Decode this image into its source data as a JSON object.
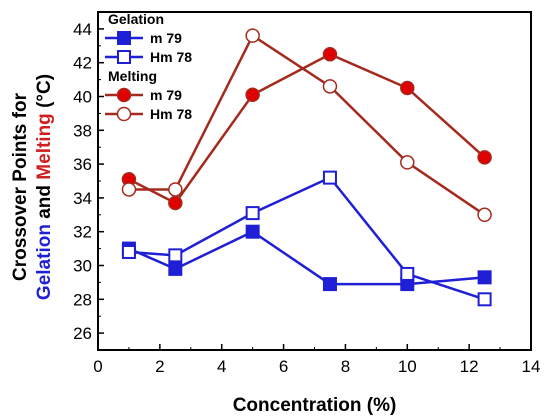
{
  "chart_data": {
    "type": "line",
    "xlabel": "Concentration (%)",
    "ylabel_parts": [
      {
        "text": "Crossover Points for",
        "color": "#000000",
        "line": 1
      },
      {
        "text": "Gelation",
        "color": "#1f1fd6",
        "line": 2
      },
      {
        "text": " and ",
        "color": "#000000",
        "line": 2
      },
      {
        "text": "Melting",
        "color": "#d01f1f",
        "line": 2
      },
      {
        "text": "  (°C)",
        "color": "#000000",
        "line": 2
      }
    ],
    "xlim": [
      0,
      14
    ],
    "ylim": [
      25,
      45
    ],
    "xticks": [
      0,
      2,
      4,
      6,
      8,
      10,
      12,
      14
    ],
    "yticks": [
      26,
      28,
      30,
      32,
      34,
      36,
      38,
      40,
      42,
      44
    ],
    "legend_position": "top-left",
    "legend_groups": [
      {
        "title": "Gelation",
        "series_index": [
          0,
          1
        ]
      },
      {
        "title": "Melting",
        "series_index": [
          2,
          3
        ]
      }
    ],
    "series": [
      {
        "name": "m 79",
        "color": "#1f1fd6",
        "marker": "square",
        "fill": "solid",
        "x": [
          1,
          2.5,
          5,
          7.5,
          10,
          12.5
        ],
        "y": [
          31.0,
          29.8,
          32.0,
          28.9,
          28.9,
          29.3
        ]
      },
      {
        "name": "Hm 78",
        "color": "#1f1fd6",
        "marker": "square",
        "fill": "open",
        "x": [
          1,
          2.5,
          5,
          7.5,
          10,
          12.5
        ],
        "y": [
          30.8,
          30.6,
          33.1,
          35.2,
          29.5,
          28.0
        ]
      },
      {
        "name": "m 79",
        "color": "#a52a1e",
        "marker": "circle",
        "fill": "solid",
        "marker_fill": "#e00000",
        "x": [
          1,
          2.5,
          5,
          7.5,
          10,
          12.5
        ],
        "y": [
          35.1,
          33.7,
          40.1,
          42.5,
          40.5,
          36.4
        ]
      },
      {
        "name": "Hm 78",
        "color": "#a52a1e",
        "marker": "circle",
        "fill": "open",
        "x": [
          1,
          2.5,
          5,
          7.5,
          10,
          12.5
        ],
        "y": [
          34.5,
          34.5,
          43.6,
          40.6,
          36.1,
          33.0
        ]
      }
    ]
  }
}
